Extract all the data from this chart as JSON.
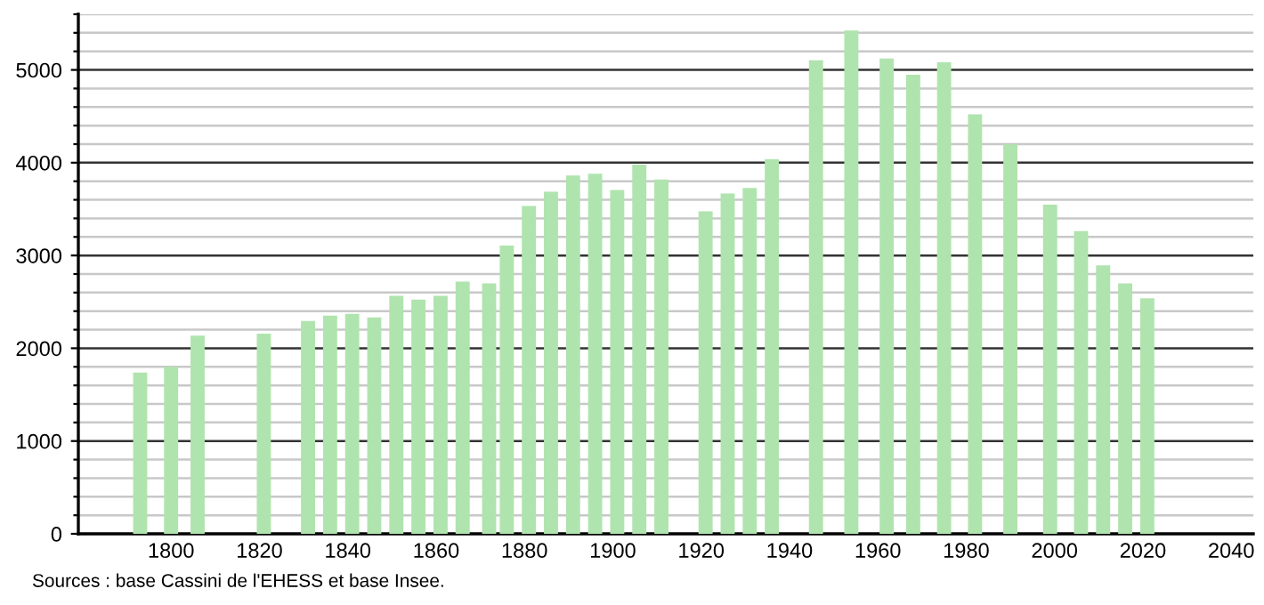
{
  "chart_data": {
    "type": "bar",
    "color": "#b0e4ae",
    "x": [
      1793,
      1800,
      1806,
      1821,
      1831,
      1836,
      1841,
      1846,
      1851,
      1856,
      1861,
      1866,
      1872,
      1876,
      1881,
      1886,
      1891,
      1896,
      1901,
      1906,
      1911,
      1921,
      1926,
      1931,
      1936,
      1946,
      1954,
      1962,
      1968,
      1975,
      1982,
      1990,
      1999,
      2006,
      2011,
      2016,
      2021
    ],
    "values": [
      1737,
      1800,
      2137,
      2157,
      2293,
      2351,
      2370,
      2332,
      2564,
      2525,
      2564,
      2719,
      2700,
      3107,
      3533,
      3688,
      3862,
      3882,
      3707,
      3979,
      3818,
      3475,
      3668,
      3727,
      4037,
      5103,
      5426,
      5122,
      4948,
      5083,
      4521,
      4198,
      3547,
      3262,
      2893,
      2700,
      2539
    ],
    "xlim": [
      1779,
      2045
    ],
    "xticks": [
      1800,
      1820,
      1840,
      1860,
      1880,
      1900,
      1920,
      1940,
      1960,
      1980,
      2000,
      2020,
      2040
    ],
    "ylim": [
      0,
      5600
    ],
    "yticks": [
      0,
      {
        "value": 200,
        "label": null
      },
      {
        "value": 400,
        "label": null
      },
      {
        "value": 600,
        "label": null
      },
      {
        "value": 800,
        "label": null
      },
      1000,
      {
        "value": 1200,
        "label": null
      },
      {
        "value": 1400,
        "label": null
      },
      {
        "value": 1600,
        "label": null
      },
      {
        "value": 1800,
        "label": null
      },
      2000,
      {
        "value": 2200,
        "label": null
      },
      {
        "value": 2400,
        "label": null
      },
      {
        "value": 2600,
        "label": null
      },
      {
        "value": 2800,
        "label": null
      },
      3000,
      {
        "value": 3200,
        "label": null
      },
      {
        "value": 3400,
        "label": null
      },
      {
        "value": 3600,
        "label": null
      },
      {
        "value": 3800,
        "label": null
      },
      4000,
      {
        "value": 4200,
        "label": null
      },
      {
        "value": 4400,
        "label": null
      },
      {
        "value": 4600,
        "label": null
      },
      {
        "value": 4800,
        "label": null
      },
      5000,
      {
        "value": 5200,
        "label": null
      },
      {
        "value": 5400,
        "label": null
      },
      {
        "value": 5600,
        "label": null
      }
    ],
    "grid": "y",
    "annotations": [
      "Sources : base Cassini de l'EHESS et base Insee."
    ]
  }
}
